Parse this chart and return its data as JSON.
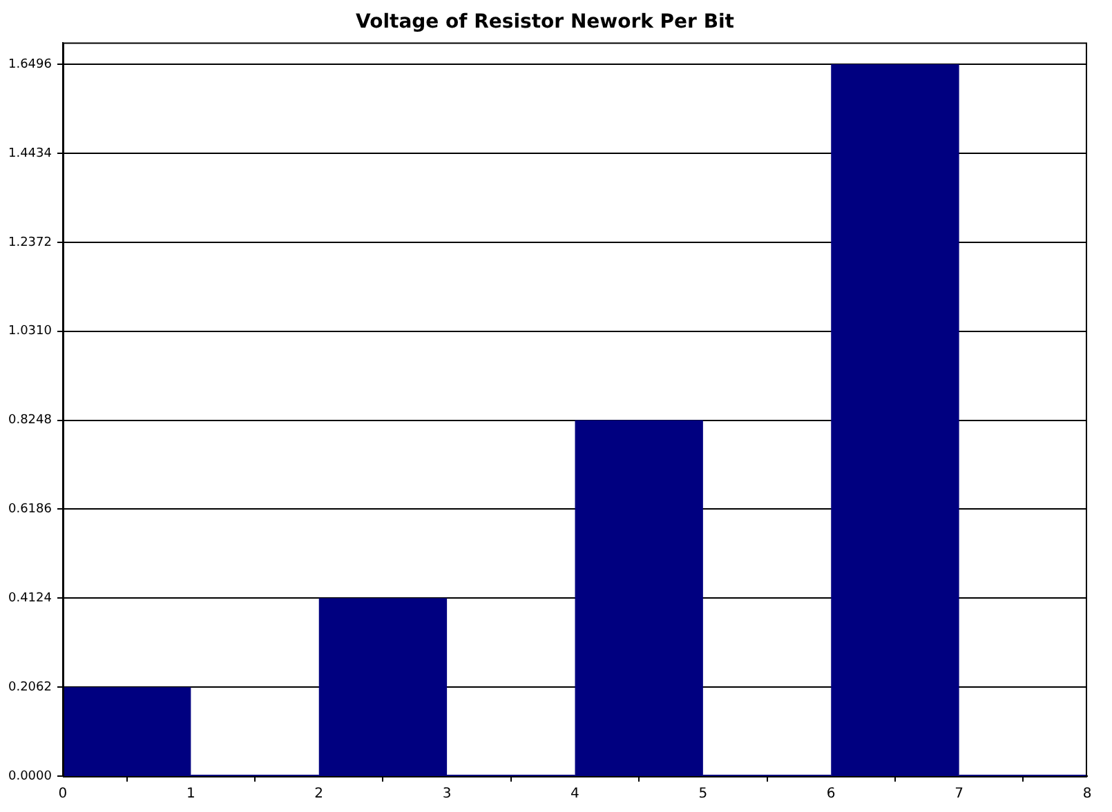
{
  "chart_data": {
    "type": "histogram",
    "title": "Voltage of Resistor Nework Per Bit",
    "bins": [
      0,
      1,
      2,
      3,
      4,
      5,
      6,
      7,
      8
    ],
    "values": [
      0.2062,
      0,
      0.4124,
      0,
      0.8248,
      0,
      1.6496,
      0
    ],
    "color": "#000080",
    "xlim": [
      0,
      8
    ],
    "xticks": [
      0,
      1,
      2,
      3,
      4,
      5,
      6,
      7,
      8
    ],
    "ylim": [
      0,
      1.7
    ],
    "yticks": [
      {
        "value": 0,
        "label": "0.0000"
      },
      0.2062,
      0.4124,
      0.6186,
      0.8248,
      {
        "value": 1.031,
        "label": "1.0310"
      },
      1.2372,
      1.4434,
      1.6496
    ],
    "grid": "y",
    "legend": false
  }
}
